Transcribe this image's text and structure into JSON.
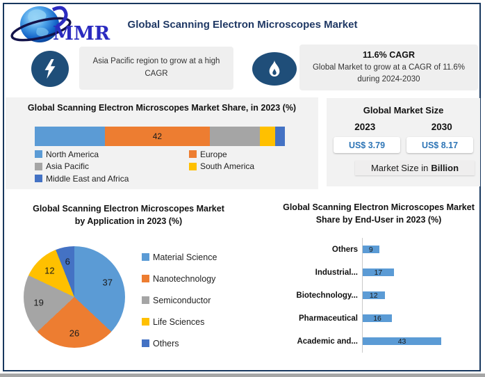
{
  "header": {
    "logo_text": "MMR",
    "title": "Global Scanning Electron Microscopes Market"
  },
  "highlights": {
    "asia_pacific": {
      "icon": "lightning-icon",
      "text": "Asia Pacific region to grow at a high CAGR"
    },
    "cagr": {
      "icon": "flame-icon",
      "heading": "11.6% CAGR",
      "text": "Global Market to grow at a CAGR of 11.6% during 2024-2030"
    }
  },
  "market_size": {
    "title": "Global Market Size",
    "year_left": "2023",
    "year_right": "2030",
    "value_left": "US$ 3.79",
    "value_right": "US$ 8.17",
    "note_prefix": "Market Size in",
    "note_bold": "Billion",
    "value_color": "#2E75B6"
  },
  "chart_data": [
    {
      "type": "bar",
      "subtype": "stacked-horizontal",
      "title": "Global Scanning Electron Microscopes Market Share, in 2023 (%)",
      "categories": [
        "North America",
        "Europe",
        "Asia Pacific",
        "South America",
        "Middle East and Africa"
      ],
      "values": [
        28,
        42,
        20,
        6,
        4
      ],
      "data_labels": [
        "",
        "42",
        "",
        "",
        ""
      ],
      "colors": [
        "#5B9BD5",
        "#ED7D31",
        "#A5A5A5",
        "#FFC000",
        "#4472C4"
      ],
      "legend_position": "bottom",
      "xlim": [
        0,
        100
      ],
      "grid": false
    },
    {
      "type": "pie",
      "title": "Global Scanning Electron Microscopes Market by Application in 2023 (%)",
      "categories": [
        "Material Science",
        "Nanotechnology",
        "Semiconductor",
        "Life Sciences",
        "Others"
      ],
      "values": [
        37,
        26,
        19,
        12,
        6
      ],
      "colors": [
        "#5B9BD5",
        "#ED7D31",
        "#A5A5A5",
        "#FFC000",
        "#4472C4"
      ],
      "start_angle": 0,
      "direction": "clockwise",
      "legend_position": "right",
      "data_labels": "inside"
    },
    {
      "type": "bar",
      "subtype": "horizontal",
      "title": "Global Scanning Electron Microscopes Market Share by End-User in 2023 (%)",
      "categories": [
        "Others",
        "Industrial...",
        "Biotechnology...",
        "Pharmaceutical",
        "Academic and..."
      ],
      "values": [
        9,
        17,
        12,
        16,
        43
      ],
      "bar_color": "#5B9BD5",
      "xlim": [
        0,
        50
      ],
      "grid": false,
      "data_labels": "center"
    }
  ]
}
